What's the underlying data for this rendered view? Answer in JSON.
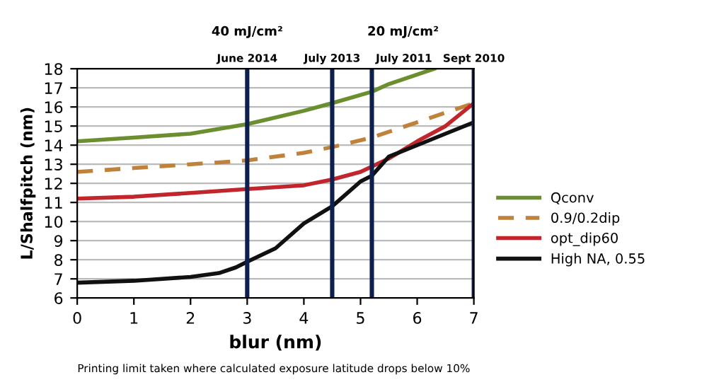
{
  "chart_data": {
    "type": "line",
    "xlabel": "blur (nm)",
    "ylabel": "L/Shalfpitch (nm)",
    "xlim": [
      0,
      7
    ],
    "ylim": [
      6,
      18
    ],
    "xticks": [
      0,
      1,
      2,
      3,
      4,
      5,
      6,
      7
    ],
    "yticks": [
      6,
      7,
      8,
      9,
      10,
      11,
      12,
      13,
      14,
      15,
      16,
      17,
      18
    ],
    "grid": "y",
    "legend": "right",
    "line_style": "solid",
    "series": [
      {
        "name": "Qconv",
        "color": "#6b8e2f",
        "x": [
          0,
          1,
          2,
          3,
          4,
          4.5,
          5.2,
          5.5,
          6,
          6.3
        ],
        "values": [
          14.2,
          14.4,
          14.6,
          15.1,
          15.8,
          16.2,
          16.8,
          17.2,
          17.7,
          18.0
        ]
      },
      {
        "name": "0.9/0.2dip",
        "color": "#c0823a",
        "line_style": "dashed",
        "x": [
          0,
          1,
          2,
          3,
          4,
          4.5,
          5.2,
          6,
          7
        ],
        "values": [
          12.6,
          12.8,
          13.0,
          13.2,
          13.6,
          13.9,
          14.4,
          15.2,
          16.2
        ]
      },
      {
        "name": "opt_dip60",
        "color": "#c0262c",
        "x": [
          0,
          1,
          2,
          3,
          4,
          4.5,
          5,
          5.5,
          6,
          6.5,
          7
        ],
        "values": [
          11.2,
          11.3,
          11.5,
          11.7,
          11.9,
          12.2,
          12.6,
          13.3,
          14.2,
          15.0,
          16.2
        ]
      },
      {
        "name": "High NA, 0.55",
        "color": "#111111",
        "x": [
          0,
          1,
          2,
          2.5,
          2.8,
          3,
          3.5,
          4,
          4.5,
          5,
          5.2,
          5.5,
          6,
          6.5,
          7
        ],
        "values": [
          6.8,
          6.9,
          7.1,
          7.3,
          7.6,
          7.9,
          8.6,
          9.9,
          10.8,
          12.1,
          12.4,
          13.4,
          14.0,
          14.6,
          15.2
        ]
      }
    ],
    "ref_lines": [
      {
        "axis": "x",
        "value": 3,
        "label": "June 2014",
        "color": "#0d1f4f"
      },
      {
        "axis": "x",
        "value": 4.5,
        "label": "July 2013",
        "color": "#0d1f4f"
      },
      {
        "axis": "x",
        "value": 5.2,
        "label": "July 2011",
        "color": "#0d1f4f"
      },
      {
        "axis": "x",
        "value": 7,
        "label": "Sept 2010",
        "color": "#0d1f4f"
      }
    ],
    "annotations": [
      "40 mJ/cm²",
      "20 mJ/cm²",
      "Printing limit taken where calculated exposure latitude drops below 10%"
    ]
  }
}
